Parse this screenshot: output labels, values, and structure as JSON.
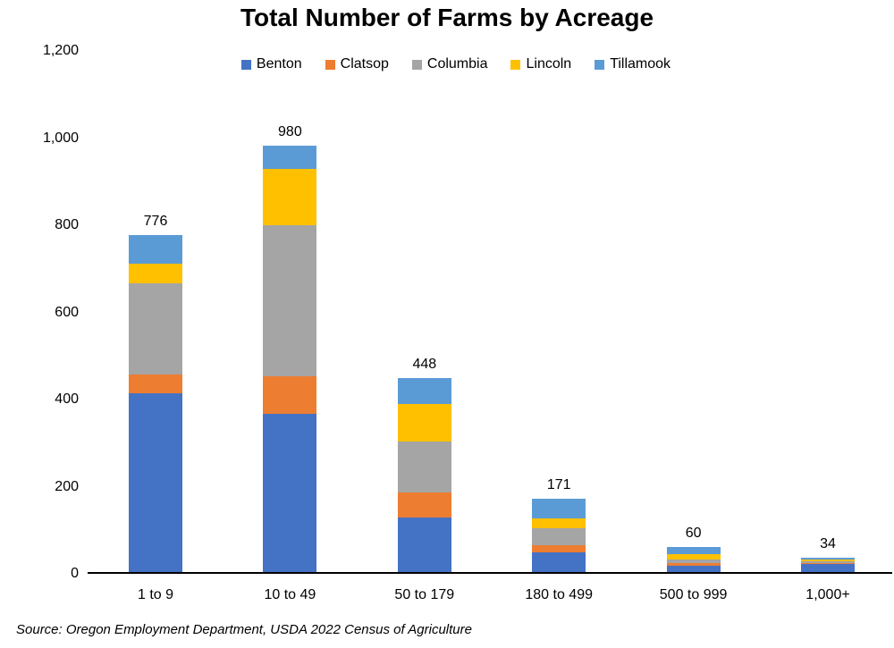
{
  "title": "Total Number of Farms by Acreage",
  "source_note": "Source: Oregon Employment Department, USDA 2022 Census of Agriculture",
  "chart_data": {
    "type": "bar",
    "stacked": true,
    "title": "Total Number of Farms by Acreage",
    "categories": [
      "1 to 9",
      "10 to 49",
      "50 to 179",
      "180 to 499",
      "500 to 999",
      "1,000+"
    ],
    "series": [
      {
        "name": "Benton",
        "color": "#4472C4",
        "values": [
          412,
          365,
          128,
          48,
          16,
          21
        ]
      },
      {
        "name": "Clatsop",
        "color": "#ED7D31",
        "values": [
          43,
          86,
          56,
          16,
          6,
          2
        ]
      },
      {
        "name": "Columbia",
        "color": "#A5A5A5",
        "values": [
          209,
          347,
          117,
          38,
          9,
          4
        ]
      },
      {
        "name": "Lincoln",
        "color": "#FFC000",
        "values": [
          46,
          129,
          87,
          23,
          12,
          4
        ]
      },
      {
        "name": "Tillamook",
        "color": "#5B9BD5",
        "values": [
          66,
          53,
          60,
          46,
          17,
          3
        ]
      }
    ],
    "totals": [
      776,
      980,
      448,
      171,
      60,
      34
    ],
    "xlabel": "",
    "ylabel": "",
    "ylim": [
      0,
      1200
    ],
    "ytick_step": 200,
    "ytick_labels": [
      "0",
      "200",
      "400",
      "600",
      "800",
      "1,000",
      "1,200"
    ],
    "grid": false,
    "legend_position": "top",
    "axis_color": "#000000",
    "background_color": "#FFFFFF"
  }
}
